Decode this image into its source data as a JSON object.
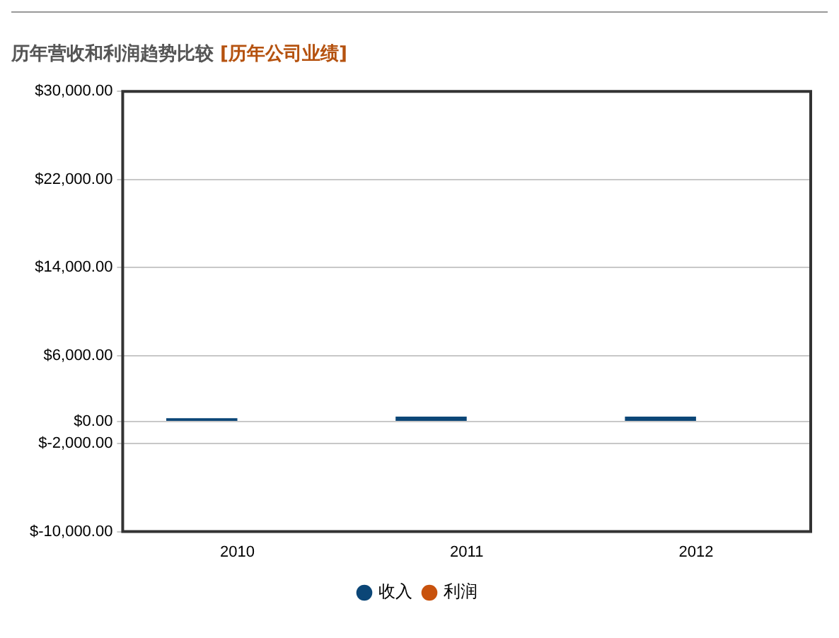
{
  "chart_data": {
    "type": "bar",
    "title": "历年营收和利润趋势比较",
    "subtitle": "[历年公司业绩]",
    "categories": [
      "2010",
      "2011",
      "2012"
    ],
    "series": [
      {
        "name": "收入",
        "color": "#0b4677",
        "values": [
          300,
          450,
          450
        ]
      },
      {
        "name": "利润",
        "color": "#c8520d",
        "values": [
          0,
          0,
          0
        ]
      }
    ],
    "ylim": [
      -10000,
      30000
    ],
    "yticks": [
      {
        "value": -10000,
        "label": "$-10,000.00"
      },
      {
        "value": -2000,
        "label": "$-2,000.00"
      },
      {
        "value": 0,
        "label": "$0.00"
      },
      {
        "value": 6000,
        "label": "$6,000.00"
      },
      {
        "value": 14000,
        "label": "$14,000.00"
      },
      {
        "value": 22000,
        "label": "$22,000.00"
      },
      {
        "value": 30000,
        "label": "$30,000.00"
      }
    ],
    "grid": "y",
    "legend": "bottom"
  }
}
